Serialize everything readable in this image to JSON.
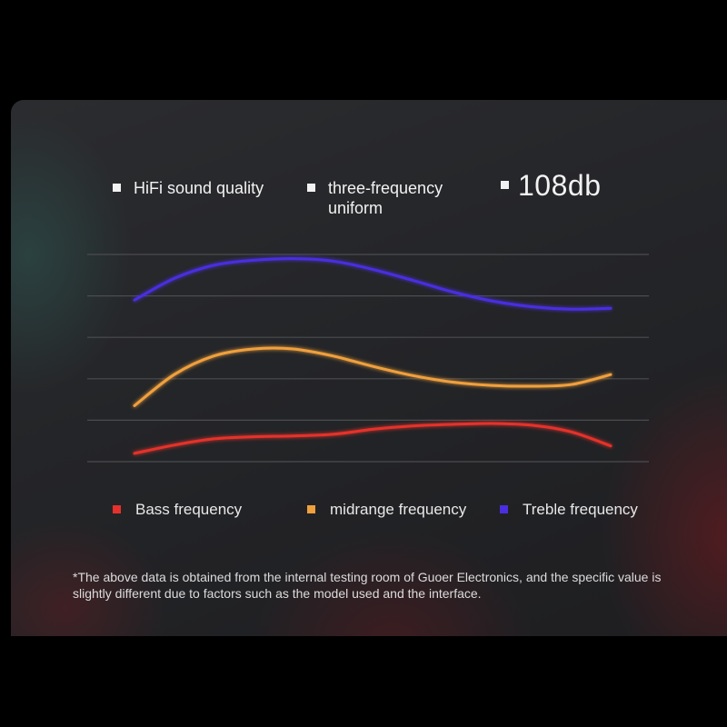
{
  "features": [
    {
      "label": "HiFi sound quality"
    },
    {
      "label": "three-frequency uniform"
    },
    {
      "label": "108db"
    }
  ],
  "chart_data": {
    "type": "line",
    "title": "",
    "xlabel": "",
    "ylabel": "",
    "grid": true,
    "legend_position": "bottom",
    "x": [
      0,
      1,
      2,
      3,
      4,
      5,
      6,
      7,
      8,
      9,
      10,
      11,
      12
    ],
    "ylim": [
      0,
      5
    ],
    "series": [
      {
        "name": "Bass frequency",
        "color": "#e5312c",
        "values": [
          0.2,
          0.4,
          0.55,
          0.6,
          0.62,
          0.66,
          0.78,
          0.86,
          0.9,
          0.92,
          0.88,
          0.72,
          0.38
        ]
      },
      {
        "name": "midrange frequency",
        "color": "#f0a03c",
        "values": [
          1.35,
          2.1,
          2.55,
          2.72,
          2.72,
          2.55,
          2.3,
          2.08,
          1.92,
          1.84,
          1.82,
          1.86,
          2.1
        ]
      },
      {
        "name": "Treble frequency",
        "color": "#4a2ee0",
        "values": [
          3.9,
          4.42,
          4.74,
          4.86,
          4.9,
          4.84,
          4.64,
          4.38,
          4.1,
          3.88,
          3.74,
          3.68,
          3.7
        ]
      }
    ]
  },
  "legend": [
    {
      "label": "Bass frequency",
      "color": "#e5312c"
    },
    {
      "label": "midrange frequency",
      "color": "#f0a03c"
    },
    {
      "label": "Treble frequency",
      "color": "#4a2ee0"
    }
  ],
  "note": "*The above data is obtained from the internal testing room of Guoer Electronics, and the specific value is slightly different due to factors such as the model used and the interface."
}
